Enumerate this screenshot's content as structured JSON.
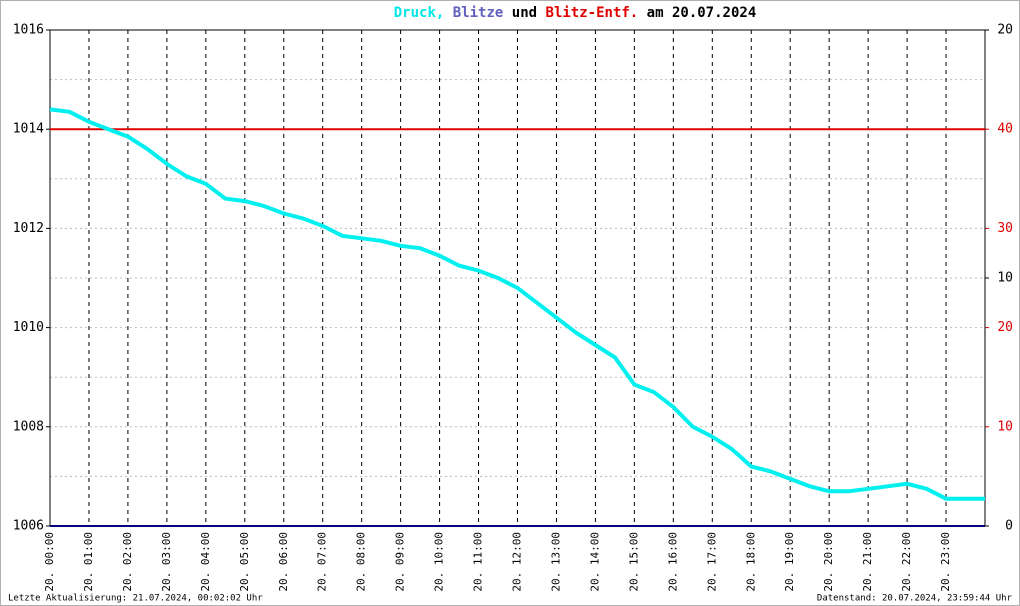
{
  "chart_data": {
    "type": "line",
    "title_parts": [
      {
        "text": "Druck,",
        "color": "#00e5e5"
      },
      {
        "text": "Blitze",
        "color": "#6060c0"
      },
      {
        "text": "und",
        "color": "#000000"
      },
      {
        "text": "Blitz-Entf.",
        "color": "#e00000"
      },
      {
        "text": "am 20.07.2024",
        "color": "#000000"
      }
    ],
    "xlim": [
      0,
      24
    ],
    "xticks": [
      {
        "value": 0,
        "label": "20. 00:00"
      },
      {
        "value": 1,
        "label": "20. 01:00"
      },
      {
        "value": 2,
        "label": "20. 02:00"
      },
      {
        "value": 3,
        "label": "20. 03:00"
      },
      {
        "value": 4,
        "label": "20. 04:00"
      },
      {
        "value": 5,
        "label": "20. 05:00"
      },
      {
        "value": 6,
        "label": "20. 06:00"
      },
      {
        "value": 7,
        "label": "20. 07:00"
      },
      {
        "value": 8,
        "label": "20. 08:00"
      },
      {
        "value": 9,
        "label": "20. 09:00"
      },
      {
        "value": 10,
        "label": "20. 10:00"
      },
      {
        "value": 11,
        "label": "20. 11:00"
      },
      {
        "value": 12,
        "label": "20. 12:00"
      },
      {
        "value": 13,
        "label": "20. 13:00"
      },
      {
        "value": 14,
        "label": "20. 14:00"
      },
      {
        "value": 15,
        "label": "20. 15:00"
      },
      {
        "value": 16,
        "label": "20. 16:00"
      },
      {
        "value": 17,
        "label": "20. 17:00"
      },
      {
        "value": 18,
        "label": "20. 18:00"
      },
      {
        "value": 19,
        "label": "20. 19:00"
      },
      {
        "value": 20,
        "label": "20. 20:00"
      },
      {
        "value": 21,
        "label": "20. 21:00"
      },
      {
        "value": 22,
        "label": "20. 22:00"
      },
      {
        "value": 23,
        "label": "20. 23:00"
      }
    ],
    "ylim": [
      1006,
      1016
    ],
    "yticks": [
      1006,
      1008,
      1010,
      1012,
      1014,
      1016
    ],
    "y_grid_minor": [
      1007,
      1008,
      1009,
      1010,
      1011,
      1012,
      1013,
      1015
    ],
    "y2lim": [
      0,
      20
    ],
    "y2ticks": [
      0,
      10,
      20
    ],
    "y2color": "#000000",
    "y3lim": [
      0,
      50
    ],
    "y3ticks": [
      10,
      20,
      30,
      40
    ],
    "y3color": "#e00000",
    "series": [
      {
        "name": "Druck",
        "color": "#00f0f0",
        "x": [
          0,
          0.5,
          1,
          1.5,
          2,
          2.5,
          3,
          3.5,
          4,
          4.5,
          5,
          5.5,
          6,
          6.5,
          7,
          7.5,
          8,
          8.5,
          9,
          9.5,
          10,
          10.5,
          11,
          11.5,
          12,
          12.5,
          13,
          13.5,
          14,
          14.5,
          15,
          15.5,
          16,
          16.5,
          17,
          17.5,
          18,
          18.5,
          19,
          19.5,
          20,
          20.5,
          21,
          21.5,
          22,
          22.5,
          23,
          23.5,
          24
        ],
        "values": [
          1014.4,
          1014.35,
          1014.15,
          1014.0,
          1013.85,
          1013.6,
          1013.3,
          1013.05,
          1012.9,
          1012.6,
          1012.55,
          1012.45,
          1012.3,
          1012.2,
          1012.05,
          1011.85,
          1011.8,
          1011.75,
          1011.65,
          1011.6,
          1011.45,
          1011.25,
          1011.15,
          1011.0,
          1010.8,
          1010.5,
          1010.2,
          1009.9,
          1009.65,
          1009.4,
          1008.85,
          1008.7,
          1008.4,
          1008.0,
          1007.8,
          1007.55,
          1007.2,
          1007.1,
          1006.95,
          1006.8,
          1006.7,
          1006.7,
          1006.75,
          1006.8,
          1006.85,
          1006.75,
          1006.55,
          1006.55,
          1006.55
        ]
      },
      {
        "name": "Blitze",
        "color": "#000080",
        "axis": "y2",
        "x": [
          0,
          24
        ],
        "values": [
          0,
          0
        ]
      },
      {
        "name": "Blitz-Entf.",
        "color": "#e00000",
        "axis": "y3",
        "x": [
          0,
          24
        ],
        "values": [
          40,
          40
        ]
      }
    ],
    "footer_left": "Letzte Aktualisierung: 21.07.2024, 00:02:02 Uhr",
    "footer_right": "Datenstand: 20.07.2024, 23:59:44 Uhr"
  }
}
